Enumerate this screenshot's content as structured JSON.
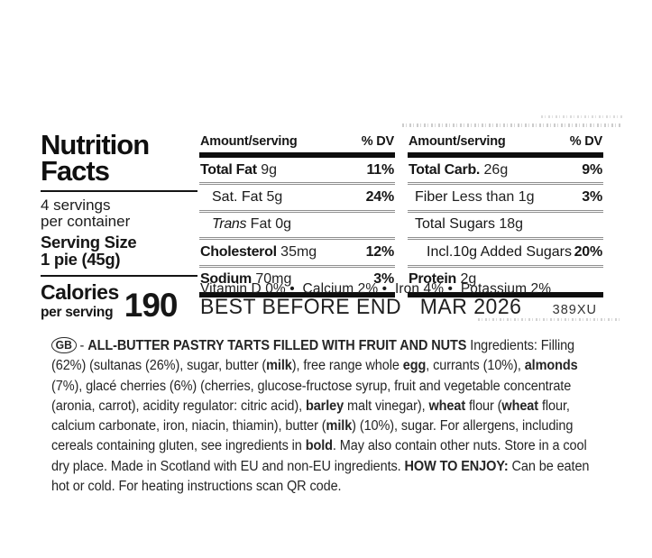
{
  "colors": {
    "ink": "#161616",
    "rule": "#141414",
    "separator": "#8f8f8f",
    "background": "#ffffff"
  },
  "nutrition_panel": {
    "title_line1": "Nutrition",
    "title_line2": "Facts",
    "servings_line1": "4 servings",
    "servings_line2": "per container",
    "serving_size_line1": "Serving Size",
    "serving_size_line2": "1 pie (45g)",
    "calories_label": "Calories",
    "calories_sublabel": "per serving",
    "calories_value": "190"
  },
  "fat_table": {
    "header_amount": "Amount/serving",
    "header_dv": "% DV",
    "rows": [
      {
        "name": "Total Fat",
        "qty": " 9g",
        "dv": "11%"
      },
      {
        "name": "Sat. Fat",
        "qty": " 5g",
        "dv": "24%"
      },
      {
        "name": "Trans",
        "qty": " Fat 0g",
        "dv": ""
      },
      {
        "name": "Cholesterol",
        "qty": " 35mg",
        "dv": "12%"
      },
      {
        "name": "Sodium",
        "qty": " 70mg",
        "dv": "3%"
      }
    ]
  },
  "carb_table": {
    "header_amount": "Amount/serving",
    "header_dv": "% DV",
    "rows": [
      {
        "name": "Total Carb.",
        "qty": " 26g",
        "dv": "9%"
      },
      {
        "name": "Fiber",
        "qty": " Less than 1g",
        "dv": "3%"
      },
      {
        "name": "Total Sugars",
        "qty": " 18g",
        "dv": ""
      },
      {
        "name": "Incl.10g Added Sugars",
        "qty": "",
        "dv": "20%"
      },
      {
        "name": "Protein",
        "qty": " 2g",
        "dv": ""
      }
    ]
  },
  "micronutrients_line": "Vitamin D 0% •  Calcium 2% •  Iron 4% •  Potassium 2%",
  "date_line": {
    "best_before": "BEST BEFORE END   MAR 2026",
    "batch_code": "389XU"
  },
  "ingredients": {
    "segments": [
      {
        "t": "GB",
        "style": "oval"
      },
      {
        "t": " - ",
        "b": false
      },
      {
        "t": "ALL-BUTTER PASTRY TARTS FILLED WITH FRUIT AND NUTS",
        "b": true
      },
      {
        "t": " Ingredients: Filling (62%) (sultanas (26%), sugar, butter (",
        "b": false
      },
      {
        "t": "milk",
        "b": true
      },
      {
        "t": "), free range whole ",
        "b": false
      },
      {
        "t": "egg",
        "b": true
      },
      {
        "t": ", currants (10%), ",
        "b": false
      },
      {
        "t": "almonds",
        "b": true
      },
      {
        "t": " (7%), glacé cherries (6%) (cherries, glucose-fructose syrup, fruit and vegetable concentrate (aronia, carrot), acidity regulator: citric acid), ",
        "b": false
      },
      {
        "t": "barley",
        "b": true
      },
      {
        "t": " malt vinegar), ",
        "b": false
      },
      {
        "t": "wheat",
        "b": true
      },
      {
        "t": " flour (",
        "b": false
      },
      {
        "t": "wheat",
        "b": true
      },
      {
        "t": " flour, calcium carbonate, iron, niacin, thiamin), butter (",
        "b": false
      },
      {
        "t": "milk",
        "b": true
      },
      {
        "t": ") (10%), sugar. For allergens, including cereals containing gluten, see ingredients in ",
        "b": false
      },
      {
        "t": "bold",
        "b": true
      },
      {
        "t": ". May also contain other nuts. Store in a cool dry place. Made in Scotland with EU and non-EU ingredients. ",
        "b": false
      },
      {
        "t": "HOW TO ENJOY:",
        "b": true
      },
      {
        "t": " Can be eaten hot or cold. For heating instructions scan QR code.",
        "b": false
      }
    ]
  }
}
